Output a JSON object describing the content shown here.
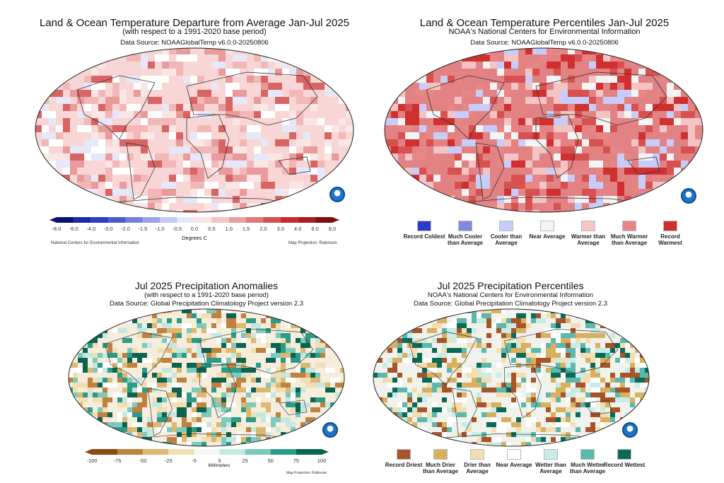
{
  "panels": [
    {
      "title": "Land & Ocean Temperature Departure from Average Jan-Jul 2025",
      "subtitle": "(with respect to a 1991-2020 base period)",
      "source": "Data Source: NOAAGlobalTemp v6.0.0-20250806",
      "colorbar": {
        "ticks": [
          "-8.0",
          "-6.0",
          "-4.0",
          "-3.0",
          "-2.0",
          "-1.5",
          "-1.0",
          "-0.5",
          "0.0",
          "0.5",
          "1.0",
          "1.5",
          "2.0",
          "3.0",
          "4.0",
          "6.0",
          "8.0"
        ],
        "colors": [
          "#0a1470",
          "#1a2aa8",
          "#2c3fc4",
          "#4a5ad0",
          "#7380dc",
          "#9aa2e8",
          "#c4c8f4",
          "#e6e8fa",
          "#fbe4e4",
          "#f6c4c4",
          "#ee9e9e",
          "#e07878",
          "#d45050",
          "#c82a2a",
          "#aa1c1c",
          "#7a1010"
        ],
        "unit": "Degrees C"
      },
      "footer_left": "National Centers for Environmental Information",
      "footer_right": "Map Projection: Robinson"
    },
    {
      "title": "Land & Ocean Temperature Percentiles Jan-Jul 2025",
      "subtitle": "NOAA's National Centers for Environmental Information",
      "source": "Data Source: NOAAGlobalTemp v6.0.0-20250806",
      "legend": [
        {
          "label": "Record Coldest",
          "color": "#3038c8"
        },
        {
          "label": "Much Cooler than Average",
          "color": "#8088e0"
        },
        {
          "label": "Cooler than Average",
          "color": "#c8ccf8"
        },
        {
          "label": "Near Average",
          "color": "#f4f4f4"
        },
        {
          "label": "Warmer than Average",
          "color": "#f6c6c6"
        },
        {
          "label": "Much Warmer than Average",
          "color": "#e68686"
        },
        {
          "label": "Record Warmest",
          "color": "#d03030"
        }
      ]
    },
    {
      "title": "Jul 2025 Precipitation Anomalies",
      "subtitle": "(with respect to a 1991-2020 base period)",
      "source": "Data Source: Global Precipitation Climatology Project version 2.3",
      "colorbar": {
        "ticks": [
          "-100",
          "-75",
          "-50",
          "-25",
          "-5",
          "5",
          "25",
          "50",
          "75",
          "100"
        ],
        "colors": [
          "#8a4a10",
          "#c08040",
          "#dcb870",
          "#f2deb0",
          "#f6f6f6",
          "#c4e8e0",
          "#7ccabc",
          "#2c9a88",
          "#0a6450"
        ],
        "unit": "Millimeters"
      },
      "footer_right": "Map Projection: Robinson"
    },
    {
      "title": "Jul 2025 Precipitation Percentiles",
      "subtitle": "NOAA's National Centers for Environmental Information",
      "source": "Data Source: Global Precipitation Climatology Project version 2.3",
      "legend": [
        {
          "label": "Record Driest",
          "color": "#a8542a"
        },
        {
          "label": "Much Drier than Average",
          "color": "#d8b060"
        },
        {
          "label": "Drier than Average",
          "color": "#f4deb0"
        },
        {
          "label": "Near Average",
          "color": "#ffffff"
        },
        {
          "label": "Wetter than Average",
          "color": "#c8ece6"
        },
        {
          "label": "Much Wetter than Average",
          "color": "#5cb8ac"
        },
        {
          "label": "Record Wettest",
          "color": "#0a6a58"
        }
      ]
    }
  ],
  "logo": "NOAA"
}
